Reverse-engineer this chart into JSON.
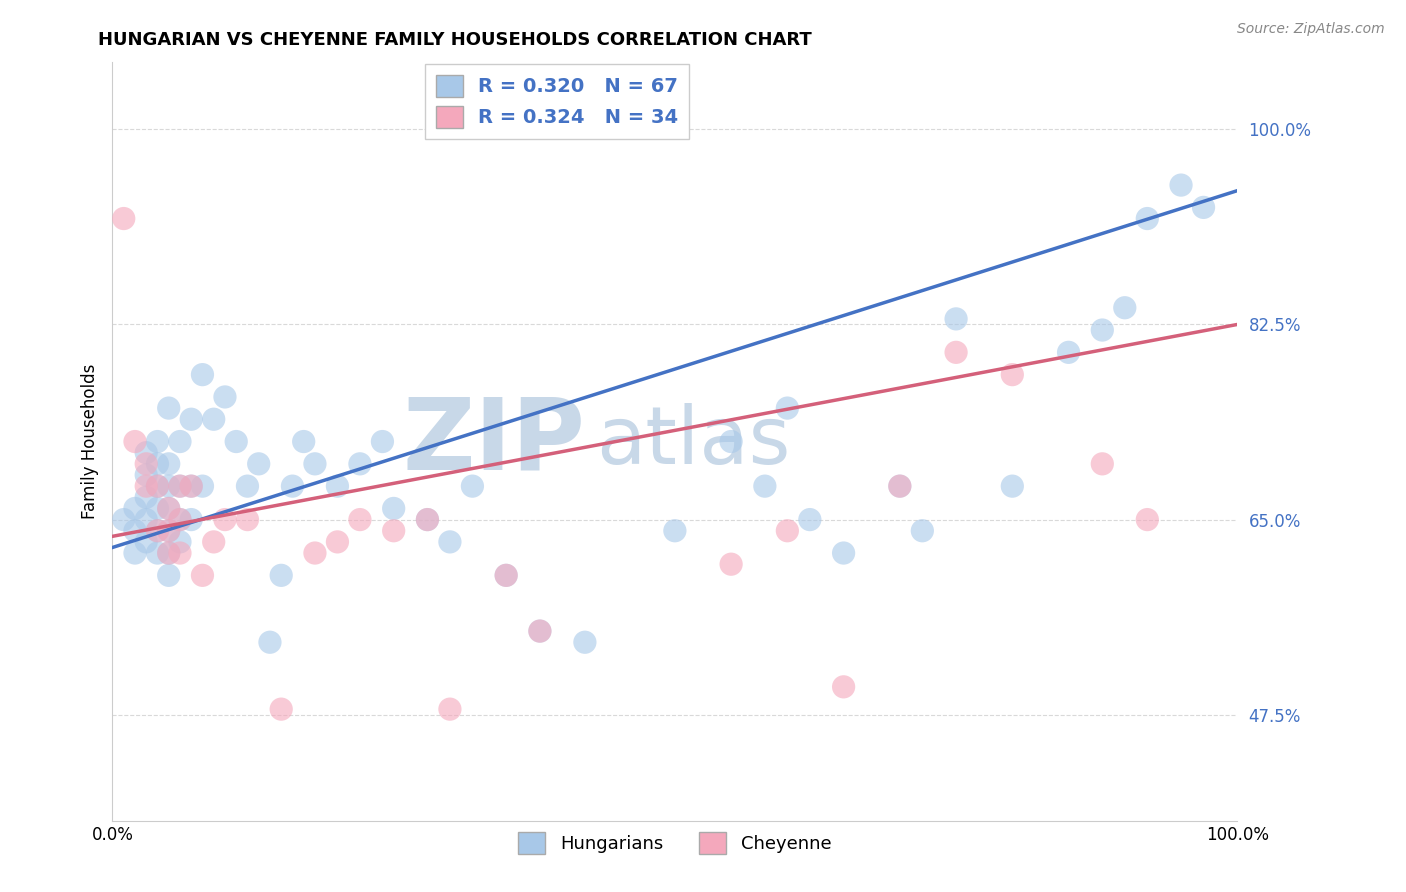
{
  "title": "HUNGARIAN VS CHEYENNE FAMILY HOUSEHOLDS CORRELATION CHART",
  "source": "Source: ZipAtlas.com",
  "ylabel": "Family Households",
  "xlim": [
    0.0,
    1.0
  ],
  "ylim": [
    0.38,
    1.06
  ],
  "yticks": [
    0.475,
    0.65,
    0.825,
    1.0
  ],
  "ytick_labels": [
    "47.5%",
    "65.0%",
    "82.5%",
    "100.0%"
  ],
  "hungarian_R": 0.32,
  "hungarian_N": 67,
  "cheyenne_R": 0.324,
  "cheyenne_N": 34,
  "hungarian_color": "#a8c8e8",
  "cheyenne_color": "#f4a8bc",
  "hungarian_line_color": "#4472c4",
  "cheyenne_line_color": "#d4607a",
  "legend_text_color": "#4472c4",
  "ytick_color": "#4472c4",
  "watermark_zip": "ZIP",
  "watermark_atlas": "atlas",
  "watermark_color": "#c8d8e8",
  "grid_color": "#d0d0d0",
  "background_color": "#ffffff",
  "hungarian_x": [
    0.01,
    0.02,
    0.02,
    0.02,
    0.03,
    0.03,
    0.03,
    0.03,
    0.03,
    0.04,
    0.04,
    0.04,
    0.04,
    0.04,
    0.04,
    0.05,
    0.05,
    0.05,
    0.05,
    0.05,
    0.05,
    0.05,
    0.06,
    0.06,
    0.06,
    0.06,
    0.07,
    0.07,
    0.07,
    0.08,
    0.08,
    0.09,
    0.1,
    0.11,
    0.12,
    0.13,
    0.14,
    0.15,
    0.16,
    0.17,
    0.18,
    0.2,
    0.22,
    0.24,
    0.25,
    0.28,
    0.3,
    0.32,
    0.35,
    0.38,
    0.42,
    0.5,
    0.55,
    0.58,
    0.6,
    0.62,
    0.65,
    0.7,
    0.72,
    0.75,
    0.8,
    0.85,
    0.88,
    0.9,
    0.92,
    0.95,
    0.97
  ],
  "hungarian_y": [
    0.65,
    0.62,
    0.64,
    0.66,
    0.63,
    0.65,
    0.67,
    0.69,
    0.71,
    0.62,
    0.64,
    0.66,
    0.68,
    0.7,
    0.72,
    0.6,
    0.62,
    0.64,
    0.66,
    0.68,
    0.7,
    0.75,
    0.63,
    0.65,
    0.68,
    0.72,
    0.65,
    0.68,
    0.74,
    0.68,
    0.78,
    0.74,
    0.76,
    0.72,
    0.68,
    0.7,
    0.54,
    0.6,
    0.68,
    0.72,
    0.7,
    0.68,
    0.7,
    0.72,
    0.66,
    0.65,
    0.63,
    0.68,
    0.6,
    0.55,
    0.54,
    0.64,
    0.72,
    0.68,
    0.75,
    0.65,
    0.62,
    0.68,
    0.64,
    0.83,
    0.68,
    0.8,
    0.82,
    0.84,
    0.92,
    0.95,
    0.93
  ],
  "cheyenne_x": [
    0.01,
    0.02,
    0.03,
    0.03,
    0.04,
    0.04,
    0.05,
    0.05,
    0.05,
    0.06,
    0.06,
    0.06,
    0.07,
    0.08,
    0.09,
    0.1,
    0.12,
    0.15,
    0.18,
    0.2,
    0.22,
    0.25,
    0.28,
    0.3,
    0.35,
    0.38,
    0.55,
    0.6,
    0.65,
    0.7,
    0.75,
    0.8,
    0.88,
    0.92
  ],
  "cheyenne_y": [
    0.92,
    0.72,
    0.68,
    0.7,
    0.64,
    0.68,
    0.62,
    0.64,
    0.66,
    0.62,
    0.65,
    0.68,
    0.68,
    0.6,
    0.63,
    0.65,
    0.65,
    0.48,
    0.62,
    0.63,
    0.65,
    0.64,
    0.65,
    0.48,
    0.6,
    0.55,
    0.61,
    0.64,
    0.5,
    0.68,
    0.8,
    0.78,
    0.7,
    0.65
  ],
  "h_line_x0": 0.0,
  "h_line_x1": 1.0,
  "h_line_y0": 0.625,
  "h_line_y1": 0.945,
  "c_line_x0": 0.0,
  "c_line_x1": 1.0,
  "c_line_y0": 0.635,
  "c_line_y1": 0.825
}
